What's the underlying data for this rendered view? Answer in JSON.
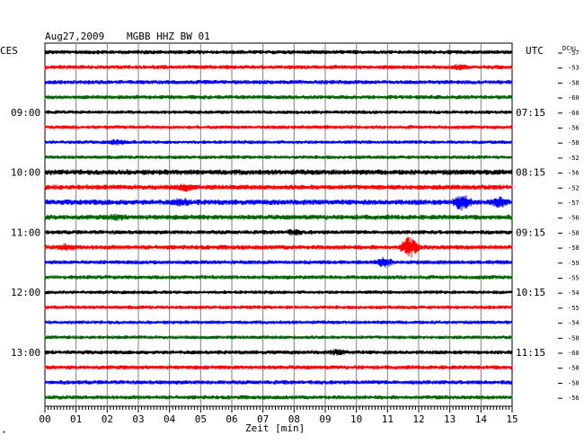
{
  "header": {
    "date": "Aug27,2009",
    "station": "MGBB HHZ BW 01",
    "left_tz": "CES",
    "right_tz": "UTC",
    "dc_label": "DC",
    "dc_sub": "01"
  },
  "footer": {
    "xlabel": "Zeit [min]",
    "corner_mark": "*"
  },
  "chart_data": {
    "type": "line",
    "title": "Aug27,2009  MGBB HHZ BW 01",
    "xlabel": "Zeit [min]",
    "xlim": [
      0,
      15
    ],
    "x_ticks": [
      "00",
      "01",
      "02",
      "03",
      "04",
      "05",
      "06",
      "07",
      "08",
      "09",
      "10",
      "11",
      "12",
      "13",
      "14",
      "15"
    ],
    "grid": true,
    "trace_colors": [
      "#000000",
      "#ff0000",
      "#0000ff",
      "#006400"
    ],
    "left_time_labels": [
      {
        "row": 4,
        "label": "09:00"
      },
      {
        "row": 8,
        "label": "10:00"
      },
      {
        "row": 12,
        "label": "11:00"
      },
      {
        "row": 16,
        "label": "12:00"
      },
      {
        "row": 20,
        "label": "13:00"
      }
    ],
    "right_time_labels": [
      {
        "row": 4,
        "label": "07:15"
      },
      {
        "row": 8,
        "label": "08:15"
      },
      {
        "row": 12,
        "label": "09:15"
      },
      {
        "row": 16,
        "label": "10:15"
      },
      {
        "row": 20,
        "label": "11:15"
      }
    ],
    "dc_offsets": [
      "-57",
      "-53",
      "-58",
      "-60",
      "-60",
      "-56",
      "-58",
      "-52",
      "-56",
      "-52",
      "-57",
      "-56",
      "-58",
      "-58",
      "-59",
      "-55",
      "-54",
      "-55",
      "-54",
      "-58",
      "-60",
      "-58",
      "-58",
      "-56"
    ],
    "traces": [
      {
        "row": 0,
        "amplitude": 1.0,
        "events": []
      },
      {
        "row": 1,
        "amplitude": 1.0,
        "events": [
          {
            "minute": 13.3,
            "strength": 0.5
          }
        ]
      },
      {
        "row": 2,
        "amplitude": 1.0,
        "events": []
      },
      {
        "row": 3,
        "amplitude": 1.0,
        "events": []
      },
      {
        "row": 4,
        "amplitude": 0.9,
        "events": []
      },
      {
        "row": 5,
        "amplitude": 0.9,
        "events": []
      },
      {
        "row": 6,
        "amplitude": 0.9,
        "events": [
          {
            "minute": 2.3,
            "strength": 0.6
          }
        ]
      },
      {
        "row": 7,
        "amplitude": 0.9,
        "events": []
      },
      {
        "row": 8,
        "amplitude": 1.3,
        "events": []
      },
      {
        "row": 9,
        "amplitude": 1.2,
        "events": [
          {
            "minute": 4.5,
            "strength": 0.9
          }
        ]
      },
      {
        "row": 10,
        "amplitude": 1.3,
        "events": [
          {
            "minute": 13.4,
            "strength": 2.6
          },
          {
            "minute": 14.6,
            "strength": 1.3
          },
          {
            "minute": 4.4,
            "strength": 0.8
          }
        ]
      },
      {
        "row": 11,
        "amplitude": 1.2,
        "events": [
          {
            "minute": 2.3,
            "strength": 0.6
          }
        ]
      },
      {
        "row": 12,
        "amplitude": 1.0,
        "events": [
          {
            "minute": 8.0,
            "strength": 0.6
          }
        ]
      },
      {
        "row": 13,
        "amplitude": 1.1,
        "events": [
          {
            "minute": 11.7,
            "strength": 3.5
          },
          {
            "minute": 0.7,
            "strength": 0.7
          }
        ]
      },
      {
        "row": 14,
        "amplitude": 1.0,
        "events": [
          {
            "minute": 10.9,
            "strength": 1.4
          }
        ]
      },
      {
        "row": 15,
        "amplitude": 1.0,
        "events": []
      },
      {
        "row": 16,
        "amplitude": 0.9,
        "events": []
      },
      {
        "row": 17,
        "amplitude": 0.9,
        "events": []
      },
      {
        "row": 18,
        "amplitude": 0.9,
        "events": []
      },
      {
        "row": 19,
        "amplitude": 0.9,
        "events": []
      },
      {
        "row": 20,
        "amplitude": 1.0,
        "events": [
          {
            "minute": 9.4,
            "strength": 0.6
          }
        ]
      },
      {
        "row": 21,
        "amplitude": 1.0,
        "events": []
      },
      {
        "row": 22,
        "amplitude": 1.0,
        "events": []
      },
      {
        "row": 23,
        "amplitude": 1.0,
        "events": []
      }
    ]
  }
}
